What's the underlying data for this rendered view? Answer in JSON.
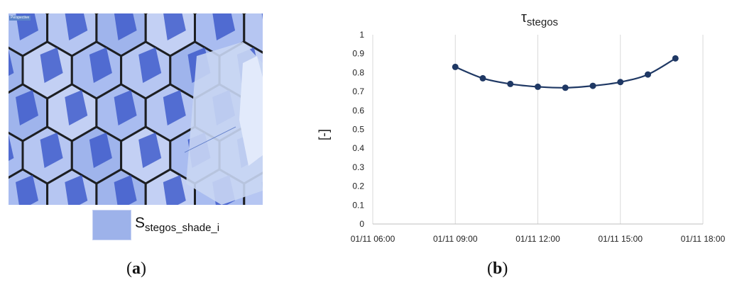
{
  "panel_a": {
    "viewport_label": "Perspective",
    "legend_label_main": "S",
    "legend_label_sub": "stegos_shade_i",
    "caption_letter": "a"
  },
  "panel_b": {
    "caption_letter": "b"
  },
  "chart_data": {
    "type": "line",
    "title_main": "τ",
    "title_sub": "stegos",
    "xlabel": "",
    "ylabel": "[-]",
    "x_ticks": [
      "01/11 06:00",
      "01/11 09:00",
      "01/11 12:00",
      "01/11 15:00",
      "01/11 18:00"
    ],
    "x_range_hours": [
      6,
      18
    ],
    "x": [
      "01/11 09:00",
      "01/11 10:00",
      "01/11 11:00",
      "01/11 12:00",
      "01/11 13:00",
      "01/11 14:00",
      "01/11 15:00",
      "01/11 16:00",
      "01/11 17:00"
    ],
    "y_ticks": [
      "0",
      "0.1",
      "0.2",
      "0.3",
      "0.4",
      "0.5",
      "0.6",
      "0.7",
      "0.8",
      "0.9",
      "1"
    ],
    "ylim": [
      0,
      1
    ],
    "series": [
      {
        "values": [
          0.83,
          0.77,
          0.74,
          0.725,
          0.72,
          0.73,
          0.75,
          0.79,
          0.875
        ]
      }
    ],
    "grid": "vertical",
    "line_color": "#1f3864"
  }
}
